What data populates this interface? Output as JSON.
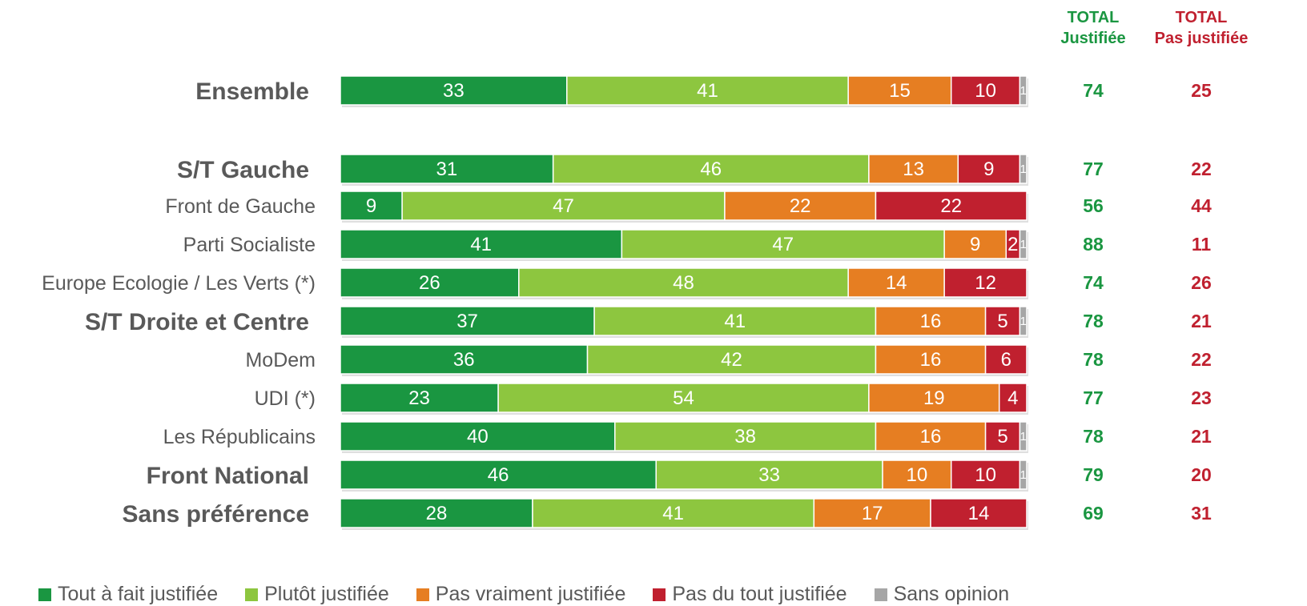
{
  "colors": {
    "tout_a_fait": "#1a9641",
    "plutot": "#8dc63f",
    "pas_vraiment": "#e67e22",
    "pas_du_tout": "#c0202f",
    "sans_opinion": "#a6a6a6",
    "total_justifiee": "#1a9641",
    "total_pas_justifiee": "#c0202f",
    "label": "#595959"
  },
  "headers": {
    "total_justifiee": [
      "TOTAL",
      "Justifiée"
    ],
    "total_pas_justifiee": [
      "TOTAL",
      "Pas justifiée"
    ]
  },
  "chart_data": {
    "type": "bar",
    "orientation": "horizontal",
    "stacked": true,
    "xlim": [
      0,
      100
    ],
    "categories": [
      {
        "label": "Ensemble",
        "bold": true
      },
      {
        "label": "S/T Gauche",
        "bold": true
      },
      {
        "label": "Front de Gauche",
        "bold": false
      },
      {
        "label": "Parti Socialiste",
        "bold": false
      },
      {
        "label": "Europe Ecologie / Les Verts (*)",
        "bold": false
      },
      {
        "label": "S/T Droite et Centre",
        "bold": true
      },
      {
        "label": "MoDem",
        "bold": false
      },
      {
        "label": "UDI (*)",
        "bold": false
      },
      {
        "label": "Les Républicains",
        "bold": false
      },
      {
        "label": "Front National",
        "bold": true
      },
      {
        "label": "Sans préférence",
        "bold": true
      }
    ],
    "series": [
      {
        "name": "Tout à fait justifiée",
        "color": "#1a9641",
        "values": [
          33,
          31,
          9,
          41,
          26,
          37,
          36,
          23,
          40,
          46,
          28
        ]
      },
      {
        "name": "Plutôt justifiée",
        "color": "#8dc63f",
        "values": [
          41,
          46,
          47,
          47,
          48,
          41,
          42,
          54,
          38,
          33,
          41
        ]
      },
      {
        "name": "Pas vraiment justifiée",
        "color": "#e67e22",
        "values": [
          15,
          13,
          22,
          9,
          14,
          16,
          16,
          19,
          16,
          10,
          17
        ]
      },
      {
        "name": "Pas du tout justifiée",
        "color": "#c0202f",
        "values": [
          10,
          9,
          22,
          2,
          12,
          5,
          6,
          4,
          5,
          10,
          14
        ]
      },
      {
        "name": "Sans opinion",
        "color": "#a6a6a6",
        "values": [
          1,
          1,
          0,
          1,
          0,
          1,
          0,
          0,
          1,
          1,
          0
        ]
      }
    ],
    "total_justifiee": [
      74,
      77,
      56,
      88,
      74,
      78,
      78,
      77,
      78,
      79,
      69
    ],
    "total_pas_justifiee": [
      25,
      22,
      44,
      11,
      26,
      21,
      22,
      23,
      21,
      20,
      31
    ],
    "legend_position": "bottom"
  }
}
